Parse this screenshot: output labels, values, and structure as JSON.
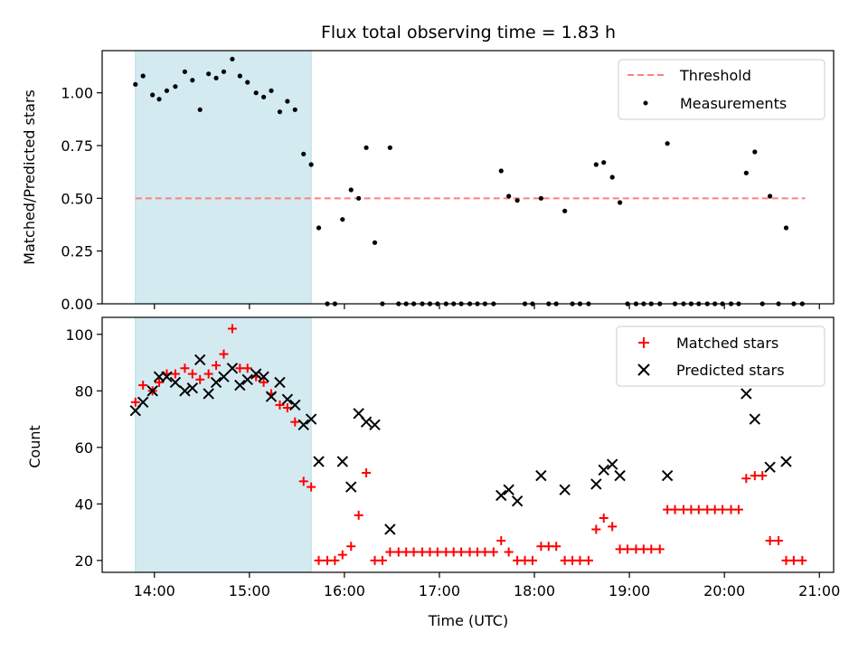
{
  "chart_data": [
    {
      "type": "scatter",
      "title": "Flux total observing time = 1.83 h",
      "ylabel": "Matched/Predicted stars",
      "xlabel": "",
      "ylim": [
        0,
        1.2
      ],
      "yticks": [
        0.0,
        0.25,
        0.5,
        0.75,
        1.0
      ],
      "ytick_labels": [
        "0.00",
        "0.25",
        "0.50",
        "0.75",
        "1.00"
      ],
      "xlim_hours": [
        13.45,
        21.15
      ],
      "shaded_region_hours": [
        13.8,
        15.65
      ],
      "shaded_color": "#d4eaf1",
      "legend_position": "top-right",
      "threshold": {
        "name": "Threshold",
        "value": 0.5,
        "x_range_hours": [
          13.8,
          20.85
        ],
        "color": "#ff7f7f"
      },
      "series": [
        {
          "name": "Measurements",
          "color": "#000000",
          "marker": "dot",
          "points": [
            [
              13.8,
              1.04
            ],
            [
              13.88,
              1.08
            ],
            [
              13.98,
              0.99
            ],
            [
              14.05,
              0.97
            ],
            [
              14.13,
              1.01
            ],
            [
              14.22,
              1.03
            ],
            [
              14.32,
              1.1
            ],
            [
              14.4,
              1.06
            ],
            [
              14.48,
              0.92
            ],
            [
              14.57,
              1.09
            ],
            [
              14.65,
              1.07
            ],
            [
              14.73,
              1.1
            ],
            [
              14.82,
              1.16
            ],
            [
              14.9,
              1.08
            ],
            [
              14.98,
              1.05
            ],
            [
              15.07,
              1.0
            ],
            [
              15.15,
              0.98
            ],
            [
              15.23,
              1.01
            ],
            [
              15.32,
              0.91
            ],
            [
              15.4,
              0.96
            ],
            [
              15.48,
              0.92
            ],
            [
              15.57,
              0.71
            ],
            [
              15.65,
              0.66
            ],
            [
              15.73,
              0.36
            ],
            [
              15.82,
              0.0
            ],
            [
              15.9,
              0.0
            ],
            [
              15.98,
              0.4
            ],
            [
              16.07,
              0.54
            ],
            [
              16.15,
              0.5
            ],
            [
              16.23,
              0.74
            ],
            [
              16.32,
              0.29
            ],
            [
              16.4,
              0.0
            ],
            [
              16.48,
              0.74
            ],
            [
              16.57,
              0.0
            ],
            [
              16.65,
              0.0
            ],
            [
              16.73,
              0.0
            ],
            [
              16.82,
              0.0
            ],
            [
              16.9,
              0.0
            ],
            [
              16.98,
              0.0
            ],
            [
              17.07,
              0.0
            ],
            [
              17.15,
              0.0
            ],
            [
              17.23,
              0.0
            ],
            [
              17.32,
              0.0
            ],
            [
              17.4,
              0.0
            ],
            [
              17.48,
              0.0
            ],
            [
              17.57,
              0.0
            ],
            [
              17.65,
              0.63
            ],
            [
              17.73,
              0.51
            ],
            [
              17.82,
              0.49
            ],
            [
              17.9,
              0.0
            ],
            [
              17.98,
              0.0
            ],
            [
              18.07,
              0.5
            ],
            [
              18.15,
              0.0
            ],
            [
              18.23,
              0.0
            ],
            [
              18.32,
              0.44
            ],
            [
              18.4,
              0.0
            ],
            [
              18.48,
              0.0
            ],
            [
              18.57,
              0.0
            ],
            [
              18.65,
              0.66
            ],
            [
              18.73,
              0.67
            ],
            [
              18.82,
              0.6
            ],
            [
              18.9,
              0.48
            ],
            [
              18.98,
              0.0
            ],
            [
              19.07,
              0.0
            ],
            [
              19.15,
              0.0
            ],
            [
              19.23,
              0.0
            ],
            [
              19.32,
              0.0
            ],
            [
              19.4,
              0.76
            ],
            [
              19.48,
              0.0
            ],
            [
              19.57,
              0.0
            ],
            [
              19.65,
              0.0
            ],
            [
              19.73,
              0.0
            ],
            [
              19.82,
              0.0
            ],
            [
              19.9,
              0.0
            ],
            [
              19.98,
              0.0
            ],
            [
              20.07,
              0.0
            ],
            [
              20.15,
              0.0
            ],
            [
              20.23,
              0.62
            ],
            [
              20.32,
              0.72
            ],
            [
              20.4,
              0.0
            ],
            [
              20.48,
              0.51
            ],
            [
              20.57,
              0.0
            ],
            [
              20.65,
              0.36
            ],
            [
              20.73,
              0.0
            ],
            [
              20.82,
              0.0
            ]
          ]
        }
      ]
    },
    {
      "type": "scatter",
      "title": "",
      "ylabel": "Count",
      "xlabel": "Time (UTC)",
      "ylim": [
        15.8,
        106
      ],
      "yticks": [
        20,
        40,
        60,
        80,
        100
      ],
      "ytick_labels": [
        "20",
        "40",
        "60",
        "80",
        "100"
      ],
      "xlim_hours": [
        13.45,
        21.15
      ],
      "xticks_hours": [
        14,
        15,
        16,
        17,
        18,
        19,
        20,
        21
      ],
      "xtick_labels": [
        "14:00",
        "15:00",
        "16:00",
        "17:00",
        "18:00",
        "19:00",
        "20:00",
        "21:00"
      ],
      "shaded_region_hours": [
        13.8,
        15.65
      ],
      "shaded_color": "#d4eaf1",
      "legend_position": "top-right",
      "series": [
        {
          "name": "Matched stars",
          "color": "#ff0000",
          "marker": "plus",
          "points": [
            [
              13.8,
              76
            ],
            [
              13.88,
              82
            ],
            [
              13.98,
              80
            ],
            [
              14.05,
              83
            ],
            [
              14.13,
              86
            ],
            [
              14.22,
              86
            ],
            [
              14.32,
              88
            ],
            [
              14.4,
              86
            ],
            [
              14.48,
              84
            ],
            [
              14.57,
              86
            ],
            [
              14.65,
              89
            ],
            [
              14.73,
              93
            ],
            [
              14.82,
              102
            ],
            [
              14.9,
              88
            ],
            [
              14.98,
              88
            ],
            [
              15.07,
              85
            ],
            [
              15.15,
              83
            ],
            [
              15.23,
              79
            ],
            [
              15.32,
              75
            ],
            [
              15.4,
              74
            ],
            [
              15.48,
              69
            ],
            [
              15.57,
              48
            ],
            [
              15.65,
              46
            ],
            [
              15.73,
              20
            ],
            [
              15.82,
              20
            ],
            [
              15.9,
              20
            ],
            [
              15.98,
              22
            ],
            [
              16.07,
              25
            ],
            [
              16.15,
              36
            ],
            [
              16.23,
              51
            ],
            [
              16.32,
              20
            ],
            [
              16.4,
              20
            ],
            [
              16.48,
              23
            ],
            [
              16.57,
              23
            ],
            [
              16.65,
              23
            ],
            [
              16.73,
              23
            ],
            [
              16.82,
              23
            ],
            [
              16.9,
              23
            ],
            [
              16.98,
              23
            ],
            [
              17.07,
              23
            ],
            [
              17.15,
              23
            ],
            [
              17.23,
              23
            ],
            [
              17.32,
              23
            ],
            [
              17.4,
              23
            ],
            [
              17.48,
              23
            ],
            [
              17.57,
              23
            ],
            [
              17.65,
              27
            ],
            [
              17.73,
              23
            ],
            [
              17.82,
              20
            ],
            [
              17.9,
              20
            ],
            [
              17.98,
              20
            ],
            [
              18.07,
              25
            ],
            [
              18.15,
              25
            ],
            [
              18.23,
              25
            ],
            [
              18.32,
              20
            ],
            [
              18.4,
              20
            ],
            [
              18.48,
              20
            ],
            [
              18.57,
              20
            ],
            [
              18.65,
              31
            ],
            [
              18.73,
              35
            ],
            [
              18.82,
              32
            ],
            [
              18.9,
              24
            ],
            [
              18.98,
              24
            ],
            [
              19.07,
              24
            ],
            [
              19.15,
              24
            ],
            [
              19.23,
              24
            ],
            [
              19.32,
              24
            ],
            [
              19.4,
              38
            ],
            [
              19.48,
              38
            ],
            [
              19.57,
              38
            ],
            [
              19.65,
              38
            ],
            [
              19.73,
              38
            ],
            [
              19.82,
              38
            ],
            [
              19.9,
              38
            ],
            [
              19.98,
              38
            ],
            [
              20.07,
              38
            ],
            [
              20.15,
              38
            ],
            [
              20.23,
              49
            ],
            [
              20.32,
              50
            ],
            [
              20.4,
              50
            ],
            [
              20.48,
              27
            ],
            [
              20.57,
              27
            ],
            [
              20.65,
              20
            ],
            [
              20.73,
              20
            ],
            [
              20.82,
              20
            ]
          ]
        },
        {
          "name": "Predicted stars",
          "color": "#000000",
          "marker": "x",
          "points": [
            [
              13.8,
              73
            ],
            [
              13.88,
              76
            ],
            [
              13.98,
              80
            ],
            [
              14.05,
              85
            ],
            [
              14.13,
              85
            ],
            [
              14.22,
              83
            ],
            [
              14.32,
              80
            ],
            [
              14.4,
              81
            ],
            [
              14.48,
              91
            ],
            [
              14.57,
              79
            ],
            [
              14.65,
              83
            ],
            [
              14.73,
              85
            ],
            [
              14.82,
              88
            ],
            [
              14.9,
              82
            ],
            [
              14.98,
              84
            ],
            [
              15.07,
              86
            ],
            [
              15.15,
              85
            ],
            [
              15.23,
              78
            ],
            [
              15.32,
              83
            ],
            [
              15.4,
              77
            ],
            [
              15.48,
              75
            ],
            [
              15.57,
              68
            ],
            [
              15.65,
              70
            ],
            [
              15.73,
              55
            ],
            [
              15.98,
              55
            ],
            [
              16.07,
              46
            ],
            [
              16.15,
              72
            ],
            [
              16.23,
              69
            ],
            [
              16.32,
              68
            ],
            [
              16.48,
              31
            ],
            [
              17.65,
              43
            ],
            [
              17.73,
              45
            ],
            [
              17.82,
              41
            ],
            [
              18.07,
              50
            ],
            [
              18.32,
              45
            ],
            [
              18.65,
              47
            ],
            [
              18.73,
              52
            ],
            [
              18.82,
              54
            ],
            [
              18.9,
              50
            ],
            [
              19.4,
              50
            ],
            [
              20.23,
              79
            ],
            [
              20.32,
              70
            ],
            [
              20.48,
              53
            ],
            [
              20.65,
              55
            ]
          ]
        }
      ]
    }
  ]
}
